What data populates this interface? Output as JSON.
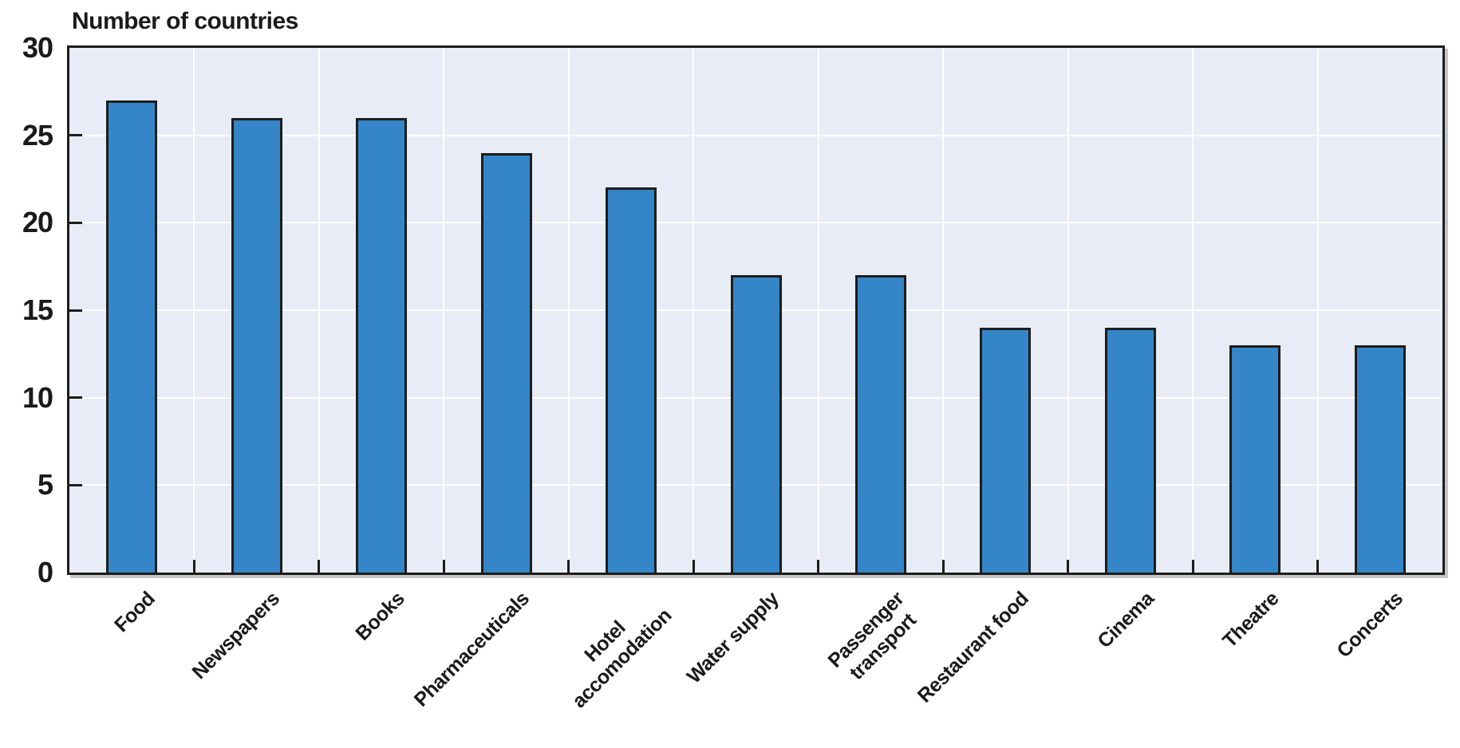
{
  "chart_data": {
    "type": "bar",
    "title": "Number of countries",
    "categories": [
      "Food",
      "Newspapers",
      "Books",
      "Pharmaceuticals",
      "Hotel\naccomodation",
      "Water supply",
      "Passenger\ntransport",
      "Restaurant food",
      "Cinema",
      "Theatre",
      "Concerts"
    ],
    "values": [
      27,
      26,
      26,
      24,
      22,
      17,
      17,
      14,
      14,
      13,
      13
    ],
    "xlabel": "",
    "ylabel": "Number of countries",
    "ylim": [
      0,
      30
    ],
    "yticks": [
      0,
      5,
      10,
      15,
      20,
      25,
      30
    ],
    "grid": true,
    "legend": "none",
    "colors": {
      "bar_fill": "#3486c8",
      "bar_edge": "#1d1d1b",
      "plot_background": "#e8ecf6",
      "gridline": "#ffffff",
      "frame": "#1d1d1b",
      "text": "#1a1a1a",
      "page_background": "#ffffff"
    }
  }
}
